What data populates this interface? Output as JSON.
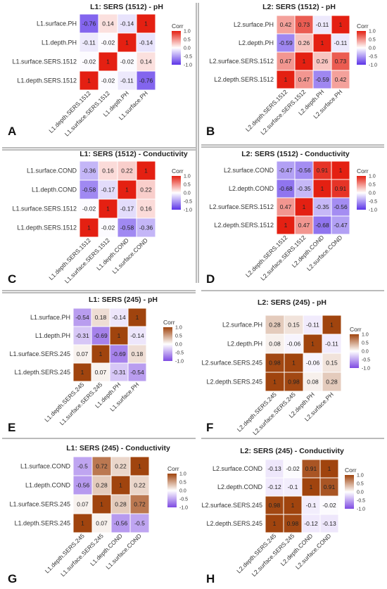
{
  "legend_title": "Corr",
  "legend_ticks": [
    "1.0",
    "0.5",
    "0.0",
    "-0.5",
    "-1.0"
  ],
  "chart_data": [
    {
      "type": "heatmap",
      "letter": "A",
      "title": "L1: SERS (1512) - pH",
      "palette": "red-blue",
      "rows": [
        "L1.surface.PH",
        "L1.depth.PH",
        "L1.surface.SERS.1512",
        "L1.depth.SERS.1512"
      ],
      "columns": [
        "L1.depth.SERS.1512",
        "L1.surface.SERS.1512",
        "L1.depth.PH",
        "L1.surface.PH"
      ],
      "values": [
        [
          -0.76,
          0.14,
          -0.14,
          1
        ],
        [
          -0.11,
          -0.02,
          1,
          -0.14
        ],
        [
          -0.02,
          1,
          -0.02,
          0.14
        ],
        [
          1,
          -0.02,
          -0.11,
          -0.76
        ]
      ],
      "labels": [
        [
          "-0.76",
          "0.14",
          "-0.14",
          "1"
        ],
        [
          "-0.11",
          "-0.02",
          "1",
          "-0.14"
        ],
        [
          "-0.02",
          "1",
          "-0.02",
          "0.14"
        ],
        [
          "1",
          "-0.02",
          "-0.11",
          "-0.76"
        ]
      ],
      "ylim": [
        -1,
        1
      ]
    },
    {
      "type": "heatmap",
      "letter": "B",
      "title": "L2: SERS (1512) - pH",
      "palette": "red-blue",
      "rows": [
        "L2.surface.PH",
        "L2.depth.PH",
        "L2.surface.SERS.1512",
        "L2.depth.SERS.1512"
      ],
      "columns": [
        "L2.depth.SERS.1512",
        "L2.surface.SERS.1512",
        "L2.depth.PH",
        "L2.surface.PH"
      ],
      "values": [
        [
          0.42,
          0.73,
          -0.11,
          1
        ],
        [
          -0.59,
          0.26,
          1,
          -0.11
        ],
        [
          0.47,
          1,
          0.26,
          0.73
        ],
        [
          1,
          0.47,
          -0.59,
          0.42
        ]
      ],
      "labels": [
        [
          "0.42",
          "0.73",
          "-0.11",
          "1"
        ],
        [
          "-0.59",
          "0.26",
          "1",
          "-0.11"
        ],
        [
          "0.47",
          "1",
          "0.26",
          "0.73"
        ],
        [
          "1",
          "0.47",
          "-0.59",
          "0.42"
        ]
      ],
      "ylim": [
        -1,
        1
      ]
    },
    {
      "type": "heatmap",
      "letter": "C",
      "title": "L1: SERS (1512) - Conductivity",
      "palette": "red-blue",
      "rows": [
        "L1.surface.COND",
        "L1.depth.COND",
        "L1.surface.SERS.1512",
        "L1.depth.SERS.1512"
      ],
      "columns": [
        "L1.depth.SERS.1512",
        "L1.surface.SERS.1512",
        "L1.depth.COND",
        "L1.surface.COND"
      ],
      "values": [
        [
          -0.36,
          0.16,
          0.22,
          1
        ],
        [
          -0.58,
          -0.17,
          1,
          0.22
        ],
        [
          -0.02,
          1,
          -0.17,
          0.16
        ],
        [
          1,
          -0.02,
          -0.58,
          -0.36
        ]
      ],
      "labels": [
        [
          "-0.36",
          "0.16",
          "0.22",
          "1"
        ],
        [
          "-0.58",
          "-0.17",
          "1",
          "0.22"
        ],
        [
          "-0.02",
          "1",
          "-0.17",
          "0.16"
        ],
        [
          "1",
          "-0.02",
          "-0.58",
          "-0.36"
        ]
      ],
      "ylim": [
        -1,
        1
      ]
    },
    {
      "type": "heatmap",
      "letter": "D",
      "title": "L2: SERS (1512) - Conductivity",
      "palette": "red-blue",
      "rows": [
        "L2.surface.COND",
        "L2.depth.COND",
        "L2.surface.SERS.1512",
        "L2.depth.SERS.1512"
      ],
      "columns": [
        "L2.depth.SERS.1512",
        "L2.surface.SERS.1512",
        "L2.depth.COND",
        "L2.surface.COND"
      ],
      "values": [
        [
          -0.47,
          -0.56,
          0.91,
          1
        ],
        [
          -0.68,
          -0.35,
          1,
          0.91
        ],
        [
          0.47,
          1,
          -0.35,
          -0.56
        ],
        [
          1,
          0.47,
          -0.68,
          -0.47
        ]
      ],
      "labels": [
        [
          "-0.47",
          "-0.56",
          "0.91",
          "1"
        ],
        [
          "-0.68",
          "-0.35",
          "1",
          "0.91"
        ],
        [
          "0.47",
          "1",
          "-0.35",
          "-0.56"
        ],
        [
          "1",
          "0.47",
          "-0.68",
          "-0.47"
        ]
      ],
      "ylim": [
        -1,
        1
      ]
    },
    {
      "type": "heatmap",
      "letter": "E",
      "title": "L1: SERS (245) - pH",
      "palette": "brown-purple",
      "rows": [
        "L1.surface.PH",
        "L1.depth.PH",
        "L1.surface.SERS.245",
        "L1.depth.SERS.245"
      ],
      "columns": [
        "L1.depth.SERS.245",
        "L1.surface.SERS.245",
        "L1.depth.PH",
        "L1.surface.PH"
      ],
      "values": [
        [
          -0.54,
          0.18,
          -0.14,
          1
        ],
        [
          -0.31,
          -0.69,
          1,
          -0.14
        ],
        [
          0.07,
          1,
          -0.69,
          0.18
        ],
        [
          1,
          0.07,
          -0.31,
          -0.54
        ]
      ],
      "labels": [
        [
          "-0.54",
          "0.18",
          "-0.14",
          "1"
        ],
        [
          "-0.31",
          "-0.69",
          "1",
          "-0.14"
        ],
        [
          "0.07",
          "1",
          "-0.69",
          "0.18"
        ],
        [
          "1",
          "0.07",
          "-0.31",
          "-0.54"
        ]
      ],
      "ylim": [
        -1,
        1
      ]
    },
    {
      "type": "heatmap",
      "letter": "F",
      "title": "L2: SERS (245) - pH",
      "palette": "brown-purple",
      "rows": [
        "L2.surface.PH",
        "L2.depth.PH",
        "L2.surface.SERS.245",
        "L2.depth.SERS.245"
      ],
      "columns": [
        "L2.depth.SERS.245",
        "L2.surface.SERS.245",
        "L2.depth.PH",
        "L2.surface.PH"
      ],
      "values": [
        [
          0.28,
          0.15,
          -0.11,
          1
        ],
        [
          0.08,
          -0.06,
          1,
          -0.11
        ],
        [
          0.98,
          1,
          -0.06,
          0.15
        ],
        [
          1,
          0.98,
          0.08,
          0.28
        ]
      ],
      "labels": [
        [
          "0.28",
          "0.15",
          "-0.11",
          "1"
        ],
        [
          "0.08",
          "-0.06",
          "1",
          "-0.11"
        ],
        [
          "0.98",
          "1",
          "-0.06",
          "0.15"
        ],
        [
          "1",
          "0.98",
          "0.08",
          "0.28"
        ]
      ],
      "ylim": [
        -1,
        1
      ]
    },
    {
      "type": "heatmap",
      "letter": "G",
      "title": "L1: SERS (245) - Conductivity",
      "palette": "brown-purple",
      "rows": [
        "L1.surface.COND",
        "L1.depth.COND",
        "L1.surface.SERS.245",
        "L1.depth.SERS.245"
      ],
      "columns": [
        "L1.depth.SERS.245",
        "L1.surface.SERS.245",
        "L1.depth.COND",
        "L1.surface.COND"
      ],
      "values": [
        [
          -0.5,
          0.72,
          0.22,
          1
        ],
        [
          -0.56,
          0.28,
          1,
          0.22
        ],
        [
          0.07,
          1,
          0.28,
          0.72
        ],
        [
          1,
          0.07,
          -0.56,
          -0.5
        ]
      ],
      "labels": [
        [
          "-0.5",
          "0.72",
          "0.22",
          "1"
        ],
        [
          "-0.56",
          "0.28",
          "1",
          "0.22"
        ],
        [
          "0.07",
          "1",
          "0.28",
          "0.72"
        ],
        [
          "1",
          "0.07",
          "-0.56",
          "-0.5"
        ]
      ],
      "ylim": [
        -1,
        1
      ]
    },
    {
      "type": "heatmap",
      "letter": "H",
      "title": "L2: SERS (245) - Conductivity",
      "palette": "brown-purple",
      "rows": [
        "L2.surface.COND",
        "L2.depth.COND",
        "L2.surface.SERS.245",
        "L2.depth.SERS.245"
      ],
      "columns": [
        "L2.depth.SERS.245",
        "L2.surface.SERS.245",
        "L2.depth.COND",
        "L2.surface.COND"
      ],
      "values": [
        [
          -0.13,
          -0.02,
          0.91,
          1
        ],
        [
          -0.12,
          -0.1,
          1,
          0.91
        ],
        [
          0.98,
          1,
          -0.1,
          -0.02
        ],
        [
          1,
          0.98,
          -0.12,
          -0.13
        ]
      ],
      "labels": [
        [
          "-0.13",
          "-0.02",
          "0.91",
          "1"
        ],
        [
          "-0.12",
          "-0.1",
          "1",
          "0.91"
        ],
        [
          "0.98",
          "1",
          "-0.1",
          "-0.02"
        ],
        [
          "1",
          "0.98",
          "-0.12",
          "-0.13"
        ]
      ],
      "ylim": [
        -1,
        1
      ]
    }
  ]
}
